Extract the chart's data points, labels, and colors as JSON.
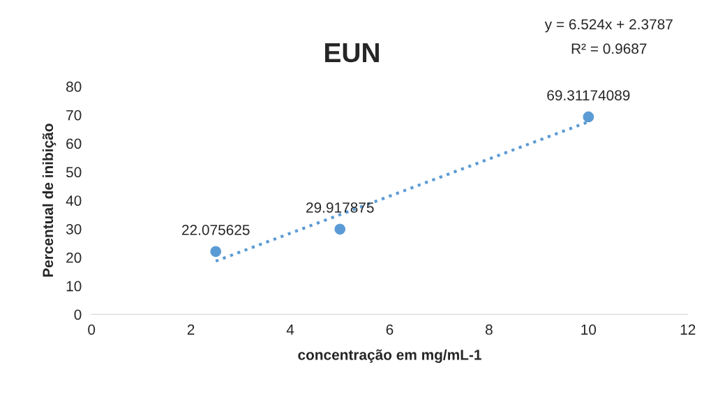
{
  "chart_data": {
    "type": "scatter",
    "title": "EUN",
    "xlabel": "concentração em mg/mL-1",
    "ylabel": "Percentual de inibição",
    "xlim": [
      0,
      12
    ],
    "xticks": [
      0,
      2,
      4,
      6,
      8,
      10,
      12
    ],
    "ylim": [
      0,
      80
    ],
    "yticks": [
      0,
      10,
      20,
      30,
      40,
      50,
      60,
      70,
      80
    ],
    "grid": false,
    "legend": false,
    "series": [
      {
        "color": "#5b9bd5",
        "marker": "circle",
        "x": [
          2.5,
          5,
          10
        ],
        "values": [
          22.075625,
          29.917875,
          69.31174089
        ],
        "data_labels": true
      },
      {
        "type": "line",
        "color": "#5b9bd5",
        "marker": "none",
        "line_style": "dotted",
        "x": [
          2.5,
          10
        ],
        "values": [
          18.7,
          67.6
        ]
      }
    ],
    "annotations": [
      "y = 6.524x + 2.3787",
      "R² = 0.9687"
    ]
  }
}
